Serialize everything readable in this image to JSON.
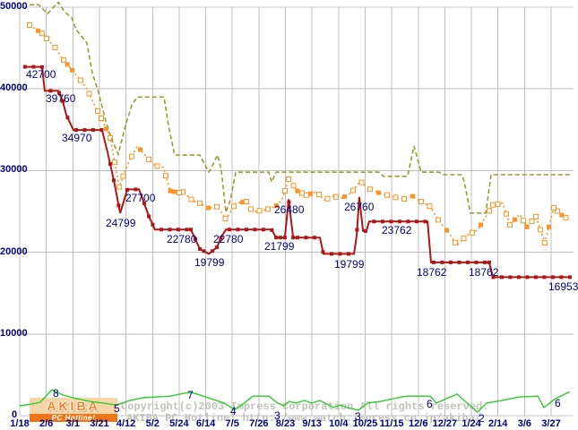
{
  "page": {
    "watermark": {
      "line1": "Copyright(c)2003 Impress Corporation All rights reserved.",
      "line2": "AKIBA PC Hotline!  http://www.watch.impress.co.jp/akiba/"
    },
    "logo": {
      "top": "AKIBA",
      "bottom": "PC Hotline!"
    },
    "colors": {
      "label_navy": "#000080",
      "grid_gray": "#c0c0c0",
      "lowest_price_red": "#b01616",
      "average_price_orange": "#ff9222",
      "highest_price_olive": "#9b9b33",
      "shop_count_green": "#2ecc2e",
      "watermark_gray": "#c2c2b8",
      "logo_orange": "#ee7618",
      "logo_peach": "#f8d5a6"
    }
  },
  "chart_data": {
    "type": "line",
    "title": "",
    "x_axis": {
      "tick_labels": [
        "1/18",
        "2/6",
        "3/1",
        "3/21",
        "4/12",
        "5/2",
        "5/24",
        "6/14",
        "7/5",
        "7/26",
        "8/23",
        "9/13",
        "10/4",
        "10/25",
        "11/15",
        "12/6",
        "12/27",
        "1/24",
        "2/14",
        "3/6",
        "3/27"
      ],
      "note_units": "x values in series points are tick-index units (0 = 1/18, 20 = 3/27)"
    },
    "y_axis": {
      "ticks": [
        0,
        10000,
        20000,
        30000,
        40000,
        50000
      ],
      "range": [
        0,
        50000
      ],
      "labels": [
        {
          "text": "50000",
          "x": 0,
          "y": 2
        },
        {
          "text": "40000",
          "x": 0,
          "y": 93
        },
        {
          "text": "30000",
          "x": 0,
          "y": 184
        },
        {
          "text": "20000",
          "x": 0,
          "y": 276
        },
        {
          "text": "10000",
          "x": 0,
          "y": 367
        },
        {
          "text": "0",
          "x": 13,
          "y": 458
        }
      ]
    },
    "grid": true,
    "legend": false,
    "series": [
      {
        "name": "lowest_price",
        "color": "#b01616",
        "line_style": "solid",
        "markers": "filled-square",
        "points": [
          [
            0.2,
            42700
          ],
          [
            0.84,
            42700
          ],
          [
            0.94,
            39760
          ],
          [
            1.45,
            39760
          ],
          [
            1.62,
            38500
          ],
          [
            1.75,
            36840
          ],
          [
            2.02,
            34970
          ],
          [
            3.1,
            34970
          ],
          [
            3.31,
            32200
          ],
          [
            3.54,
            28800
          ],
          [
            3.78,
            24799
          ],
          [
            3.95,
            26600
          ],
          [
            4.05,
            27700
          ],
          [
            4.49,
            27700
          ],
          [
            4.65,
            26300
          ],
          [
            4.86,
            24400
          ],
          [
            5.09,
            22780
          ],
          [
            6.44,
            22780
          ],
          [
            6.61,
            21600
          ],
          [
            6.78,
            20400
          ],
          [
            7.12,
            19799
          ],
          [
            7.42,
            20600
          ],
          [
            7.59,
            21900
          ],
          [
            7.76,
            22780
          ],
          [
            9.48,
            22780
          ],
          [
            9.65,
            21799
          ],
          [
            9.98,
            21799
          ],
          [
            10.12,
            26480
          ],
          [
            10.29,
            21799
          ],
          [
            11.3,
            21799
          ],
          [
            11.43,
            19799
          ],
          [
            12.58,
            19799
          ],
          [
            12.68,
            22000
          ],
          [
            12.78,
            26760
          ],
          [
            12.92,
            22600
          ],
          [
            13.05,
            22600
          ],
          [
            13.15,
            23762
          ],
          [
            15.35,
            23762
          ],
          [
            15.48,
            18762
          ],
          [
            17.67,
            18762
          ],
          [
            17.81,
            16953
          ],
          [
            20.78,
            16953
          ]
        ]
      },
      {
        "name": "average_price",
        "color": "#ff9222",
        "line_style": "dashed",
        "markers": "open-square",
        "points": [
          [
            0.37,
            47800
          ],
          [
            0.84,
            46800
          ],
          [
            1.11,
            45800
          ],
          [
            1.38,
            44900
          ],
          [
            1.55,
            43900
          ],
          [
            1.79,
            43000
          ],
          [
            2.02,
            42100
          ],
          [
            2.26,
            41200
          ],
          [
            2.53,
            40000
          ],
          [
            2.73,
            38600
          ],
          [
            3.07,
            36400
          ],
          [
            3.41,
            34000
          ],
          [
            3.74,
            28000
          ],
          [
            4.08,
            30900
          ],
          [
            4.42,
            33000
          ],
          [
            4.76,
            31700
          ],
          [
            5.09,
            30600
          ],
          [
            5.4,
            30400
          ],
          [
            5.67,
            27500
          ],
          [
            6.0,
            27300
          ],
          [
            6.17,
            27400
          ],
          [
            6.51,
            26300
          ],
          [
            6.78,
            26000
          ],
          [
            7.12,
            25400
          ],
          [
            7.45,
            25600
          ],
          [
            7.76,
            24000
          ],
          [
            8.13,
            26000
          ],
          [
            8.53,
            26200
          ],
          [
            8.77,
            24900
          ],
          [
            9.04,
            25100
          ],
          [
            9.27,
            25200
          ],
          [
            9.65,
            25650
          ],
          [
            9.88,
            26500
          ],
          [
            10.12,
            28950
          ],
          [
            10.45,
            27500
          ],
          [
            10.79,
            27000
          ],
          [
            11.16,
            27400
          ],
          [
            11.47,
            26400
          ],
          [
            11.8,
            26850
          ],
          [
            12.14,
            26650
          ],
          [
            12.48,
            27300
          ],
          [
            12.82,
            28700
          ],
          [
            13.09,
            27850
          ],
          [
            13.49,
            27300
          ],
          [
            13.83,
            27000
          ],
          [
            14.1,
            26750
          ],
          [
            14.43,
            26500
          ],
          [
            14.77,
            26900
          ],
          [
            15.11,
            26200
          ],
          [
            15.45,
            25600
          ],
          [
            15.78,
            23800
          ],
          [
            16.12,
            22500
          ],
          [
            16.46,
            20850
          ],
          [
            16.8,
            22000
          ],
          [
            17.03,
            22400
          ],
          [
            17.23,
            22700
          ],
          [
            17.47,
            24000
          ],
          [
            17.81,
            25800
          ],
          [
            18.18,
            26000
          ],
          [
            18.45,
            23350
          ],
          [
            18.82,
            24650
          ],
          [
            19.09,
            23100
          ],
          [
            19.43,
            24350
          ],
          [
            19.76,
            21150
          ],
          [
            20.1,
            25450
          ],
          [
            20.4,
            24550
          ],
          [
            20.61,
            24100
          ]
        ]
      },
      {
        "name": "highest_price",
        "color": "#9b9b33",
        "line_style": "dashed",
        "markers": "none",
        "points": [
          [
            0.37,
            50300
          ],
          [
            0.71,
            50300
          ],
          [
            1.05,
            49200
          ],
          [
            1.45,
            50600
          ],
          [
            1.69,
            49450
          ],
          [
            1.96,
            48700
          ],
          [
            2.12,
            47250
          ],
          [
            2.36,
            46300
          ],
          [
            2.53,
            45600
          ],
          [
            2.73,
            42000
          ],
          [
            2.97,
            39500
          ],
          [
            3.24,
            36000
          ],
          [
            3.47,
            33800
          ],
          [
            3.71,
            32000
          ],
          [
            3.98,
            35500
          ],
          [
            4.22,
            38000
          ],
          [
            4.42,
            39000
          ],
          [
            5.43,
            39000
          ],
          [
            5.6,
            35500
          ],
          [
            5.83,
            31900
          ],
          [
            6.78,
            31900
          ],
          [
            7.12,
            29800
          ],
          [
            7.45,
            31900
          ],
          [
            7.59,
            30000
          ],
          [
            7.76,
            24900
          ],
          [
            7.93,
            26400
          ],
          [
            8.13,
            29800
          ],
          [
            9.38,
            29800
          ],
          [
            9.48,
            28600
          ],
          [
            9.65,
            29800
          ],
          [
            13.52,
            29800
          ],
          [
            13.69,
            29300
          ],
          [
            14.6,
            29300
          ],
          [
            14.84,
            33000
          ],
          [
            15.11,
            29800
          ],
          [
            15.78,
            29800
          ],
          [
            15.95,
            29500
          ],
          [
            16.63,
            29500
          ],
          [
            16.73,
            28700
          ],
          [
            16.96,
            24800
          ],
          [
            17.54,
            24800
          ],
          [
            17.74,
            29500
          ],
          [
            20.78,
            29500
          ]
        ]
      },
      {
        "name": "shop_count",
        "color": "#2ecc2e",
        "line_style": "solid",
        "markers": "none",
        "value_units": "shops",
        "points": [
          [
            0.0,
            4.0
          ],
          [
            0.44,
            4.4
          ],
          [
            0.78,
            4.9
          ],
          [
            1.21,
            8.0
          ],
          [
            1.62,
            6.7
          ],
          [
            2.12,
            5.8
          ],
          [
            2.63,
            5.1
          ],
          [
            3.14,
            4.7
          ],
          [
            3.64,
            4.2
          ],
          [
            4.15,
            5.3
          ],
          [
            4.65,
            6.0
          ],
          [
            5.16,
            6.2
          ],
          [
            5.67,
            6.4
          ],
          [
            6.17,
            7.1
          ],
          [
            6.41,
            7.3
          ],
          [
            6.68,
            6.9
          ],
          [
            7.18,
            5.8
          ],
          [
            7.69,
            4.7
          ],
          [
            8.09,
            3.1
          ],
          [
            8.36,
            4.2
          ],
          [
            8.77,
            6.4
          ],
          [
            9.38,
            6.4
          ],
          [
            9.71,
            4.7
          ],
          [
            9.95,
            4.0
          ],
          [
            10.15,
            5.1
          ],
          [
            10.39,
            4.7
          ],
          [
            10.72,
            5.3
          ],
          [
            10.99,
            4.7
          ],
          [
            11.3,
            5.3
          ],
          [
            11.8,
            3.6
          ],
          [
            12.07,
            4.2
          ],
          [
            12.31,
            3.6
          ],
          [
            12.75,
            2.9
          ],
          [
            13.09,
            4.7
          ],
          [
            13.59,
            5.1
          ],
          [
            14.37,
            6.2
          ],
          [
            14.6,
            6.4
          ],
          [
            15.45,
            6.4
          ],
          [
            15.68,
            4.7
          ],
          [
            16.46,
            6.9
          ],
          [
            17.23,
            2.4
          ],
          [
            17.57,
            4.7
          ],
          [
            18.14,
            5.3
          ],
          [
            18.82,
            6.2
          ],
          [
            19.5,
            6.4
          ],
          [
            19.73,
            3.6
          ],
          [
            20.17,
            5.8
          ],
          [
            20.7,
            7.5
          ]
        ]
      }
    ],
    "price_annotations": [
      {
        "text": "42700",
        "x": 29,
        "y": 77
      },
      {
        "text": "39760",
        "x": 51,
        "y": 104
      },
      {
        "text": "34970",
        "x": 69,
        "y": 148
      },
      {
        "text": "24799",
        "x": 118,
        "y": 243
      },
      {
        "text": "27700",
        "x": 140,
        "y": 215
      },
      {
        "text": "22780",
        "x": 186,
        "y": 261
      },
      {
        "text": "19799",
        "x": 217,
        "y": 287
      },
      {
        "text": "22780",
        "x": 238,
        "y": 261
      },
      {
        "text": "21799",
        "x": 295,
        "y": 269
      },
      {
        "text": "26480",
        "x": 306,
        "y": 228
      },
      {
        "text": "19799",
        "x": 373,
        "y": 289
      },
      {
        "text": "26760",
        "x": 384,
        "y": 225
      },
      {
        "text": "23762",
        "x": 426,
        "y": 251
      },
      {
        "text": "18762",
        "x": 465,
        "y": 298
      },
      {
        "text": "18762",
        "x": 523,
        "y": 298
      },
      {
        "text": "16953",
        "x": 612,
        "y": 314
      }
    ],
    "count_annotations": [
      {
        "text": "8",
        "x": 59,
        "y": 433
      },
      {
        "text": "5",
        "x": 127,
        "y": 450
      },
      {
        "text": "7",
        "x": 209,
        "y": 435
      },
      {
        "text": "4",
        "x": 257,
        "y": 453
      },
      {
        "text": "3",
        "x": 306,
        "y": 458
      },
      {
        "text": "3",
        "x": 396,
        "y": 459
      },
      {
        "text": "6",
        "x": 476,
        "y": 445
      },
      {
        "text": "2",
        "x": 534,
        "y": 461
      },
      {
        "text": "6",
        "x": 619,
        "y": 444
      }
    ]
  }
}
